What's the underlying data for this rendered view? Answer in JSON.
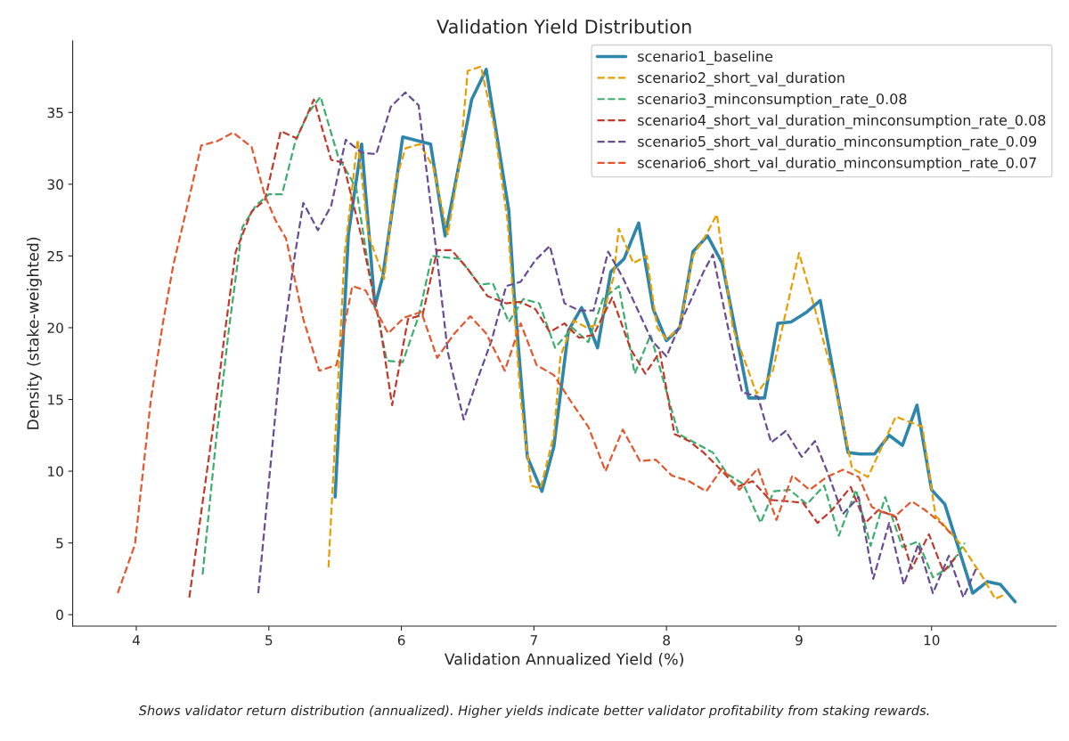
{
  "chart_data": {
    "type": "line",
    "title": "Validation Yield Distribution",
    "xlabel": "Validation Annualized Yield (%)",
    "ylabel": "Density (stake-weighted)",
    "annotations": [
      "Shows validator return distribution (annualized). Higher yields indicate better validator profitability from staking rewards."
    ],
    "xlim": [
      3.52,
      10.94
    ],
    "ylim": [
      -0.8,
      40
    ],
    "xticks": [
      4,
      5,
      6,
      7,
      8,
      9,
      10
    ],
    "yticks": [
      0,
      5,
      10,
      15,
      20,
      25,
      30,
      35
    ],
    "grid": false,
    "legend": "top right",
    "series": [
      {
        "name": "scenario1_baseline",
        "color": "#2e86ab",
        "line_style": "solid",
        "x": [
          5.5,
          5.6,
          5.7,
          5.8,
          5.86,
          6.01,
          6.22,
          6.33,
          6.53,
          6.64,
          6.81,
          6.85,
          6.95,
          7.06,
          7.15,
          7.26,
          7.36,
          7.48,
          7.58,
          7.68,
          7.79,
          7.9,
          8.0,
          8.1,
          8.2,
          8.31,
          8.42,
          8.62,
          8.74,
          8.84,
          8.94,
          9.06,
          9.16,
          9.37,
          9.46,
          9.57,
          9.68,
          9.78,
          9.89,
          10.0,
          10.1,
          10.31,
          10.42,
          10.52,
          10.63
        ],
        "values": [
          8.2,
          26.5,
          32.8,
          21.5,
          23.6,
          33.3,
          32.8,
          26.4,
          35.9,
          38.0,
          28.2,
          22.4,
          11.0,
          8.6,
          11.7,
          19.8,
          21.4,
          18.6,
          23.9,
          24.8,
          27.3,
          21.3,
          19.1,
          20.0,
          25.3,
          26.4,
          24.5,
          15.1,
          15.1,
          20.3,
          20.4,
          21.1,
          21.9,
          11.3,
          11.2,
          11.2,
          12.5,
          11.8,
          14.6,
          8.7,
          7.7,
          1.5,
          2.3,
          2.1,
          0.9
        ]
      },
      {
        "name": "scenario2_short_val_duration",
        "color": "#e69f00",
        "line_style": "dashed",
        "x": [
          5.45,
          5.51,
          5.57,
          5.67,
          5.75,
          5.87,
          5.95,
          6.03,
          6.14,
          6.24,
          6.35,
          6.44,
          6.5,
          6.6,
          6.7,
          6.8,
          6.9,
          6.98,
          7.05,
          7.15,
          7.2,
          7.3,
          7.4,
          7.5,
          7.6,
          7.64,
          7.75,
          7.85,
          7.93,
          8.0,
          8.1,
          8.2,
          8.3,
          8.38,
          8.5,
          8.68,
          8.8,
          9.0,
          9.12,
          9.27,
          9.4,
          9.52,
          9.73,
          9.93,
          10.03,
          10.23,
          10.38,
          10.48,
          10.55
        ],
        "values": [
          3.3,
          14,
          25,
          33.1,
          26.5,
          23.4,
          30,
          32.5,
          32.8,
          31.2,
          26.5,
          31.5,
          37.9,
          38.2,
          34,
          27.5,
          15,
          9,
          8.8,
          12.5,
          18,
          20.5,
          20.0,
          20.3,
          23.5,
          26.9,
          24.5,
          25,
          20,
          19.2,
          20,
          25,
          26.5,
          27.9,
          20,
          15.4,
          16.9,
          25.2,
          21.3,
          16.1,
          10.2,
          9.6,
          13.8,
          13.1,
          6.9,
          4.8,
          2.7,
          1.1,
          1.4
        ]
      },
      {
        "name": "scenario3_minconsumption_rate_0.08",
        "color": "#3cae6e",
        "line_style": "dashed",
        "x": [
          4.5,
          4.6,
          4.7,
          4.8,
          4.9,
          5.0,
          5.1,
          5.2,
          5.3,
          5.39,
          5.52,
          5.66,
          5.76,
          5.89,
          6.01,
          6.13,
          6.23,
          6.44,
          6.59,
          6.69,
          6.81,
          6.92,
          7.04,
          7.16,
          7.29,
          7.41,
          7.52,
          7.64,
          7.76,
          7.88,
          8.09,
          8.25,
          8.35,
          8.46,
          8.58,
          8.71,
          8.81,
          8.93,
          9.06,
          9.19,
          9.3,
          9.43,
          9.54,
          9.65,
          9.78,
          9.9,
          10.01,
          10.13,
          10.25
        ],
        "values": [
          2.8,
          12,
          20,
          27,
          28.5,
          29.3,
          29.3,
          33,
          35,
          36.1,
          32.0,
          29.7,
          23.7,
          17.7,
          17.6,
          20.8,
          25.0,
          24.8,
          23.0,
          23.1,
          20.4,
          22.0,
          21.7,
          18.6,
          20.0,
          19.0,
          22.0,
          22.9,
          16.8,
          19.5,
          12.6,
          11.8,
          11.3,
          9.8,
          9.1,
          6.4,
          8.6,
          8.7,
          7.7,
          9.0,
          5.5,
          8.7,
          4.8,
          8.2,
          4.7,
          5.1,
          2.6,
          3.3,
          5.0
        ]
      },
      {
        "name": "scenario4_short_val_duration_minconsumption_rate_0.08",
        "color": "#c0392b",
        "line_style": "dashed",
        "x": [
          4.4,
          4.58,
          4.67,
          4.75,
          4.87,
          4.97,
          5.09,
          5.21,
          5.34,
          5.47,
          5.56,
          5.7,
          5.84,
          5.93,
          6.05,
          6.16,
          6.27,
          6.38,
          6.5,
          6.65,
          6.79,
          6.9,
          7.01,
          7.12,
          7.23,
          7.34,
          7.45,
          7.59,
          7.73,
          7.84,
          7.95,
          8.06,
          8.17,
          8.28,
          8.42,
          8.53,
          8.65,
          8.78,
          8.92,
          9.03,
          9.14,
          9.25,
          9.39,
          9.5,
          9.6,
          9.73,
          9.85,
          9.98,
          10.09,
          10.2
        ],
        "values": [
          1.2,
          13.1,
          19.8,
          25.3,
          28.1,
          28.9,
          33.7,
          33.2,
          35.9,
          31.7,
          31.5,
          26.3,
          20.1,
          14.6,
          20.6,
          20.9,
          25.4,
          25.4,
          24.1,
          22.2,
          21.7,
          21.8,
          21.3,
          19.7,
          20.3,
          19.3,
          19.5,
          22.1,
          18.5,
          16.8,
          18.3,
          12.6,
          12.1,
          11.3,
          10.0,
          8.9,
          9.3,
          8.0,
          7.9,
          7.8,
          6.4,
          7.3,
          8.9,
          6.4,
          7.3,
          6.8,
          3.2,
          5.6,
          3.0,
          4.2
        ]
      },
      {
        "name": "scenario5_short_val_duratio_minconsumption_rate_0.09",
        "color": "#6a4c93",
        "line_style": "dashed",
        "x": [
          4.92,
          5.09,
          5.19,
          5.26,
          5.37,
          5.47,
          5.58,
          5.7,
          5.81,
          5.92,
          6.03,
          6.13,
          6.26,
          6.35,
          6.47,
          6.57,
          6.68,
          6.79,
          6.9,
          7.01,
          7.12,
          7.23,
          7.34,
          7.45,
          7.56,
          7.67,
          7.78,
          7.89,
          8.0,
          8.11,
          8.28,
          8.35,
          8.46,
          8.57,
          8.69,
          8.79,
          8.9,
          9.02,
          9.12,
          9.22,
          9.33,
          9.45,
          9.56,
          9.68,
          9.79,
          9.9,
          10.01,
          10.13,
          10.24,
          10.34
        ],
        "values": [
          1.5,
          17.9,
          24.7,
          28.7,
          26.8,
          28.5,
          33.1,
          32.2,
          32.1,
          35.4,
          36.4,
          35.5,
          25.6,
          18.3,
          13.6,
          16.3,
          19.1,
          22.9,
          23.2,
          24.7,
          25.7,
          21.7,
          21.2,
          21.2,
          25.3,
          23.5,
          21.3,
          19.1,
          18.0,
          20.4,
          23.9,
          25.1,
          20.2,
          15.5,
          15.2,
          12.0,
          12.8,
          11.0,
          12.1,
          9.8,
          7.0,
          8.2,
          2.5,
          6.4,
          2.1,
          4.9,
          1.5,
          4.1,
          1.2,
          3.3
        ]
      },
      {
        "name": "scenario6_short_val_duratio_minconsumption_rate_0.07",
        "color": "#e4572e",
        "line_style": "dashed",
        "x": [
          3.86,
          3.99,
          4.11,
          4.2,
          4.28,
          4.38,
          4.49,
          4.61,
          4.73,
          4.87,
          4.97,
          5.05,
          5.13,
          5.26,
          5.38,
          5.51,
          5.63,
          5.73,
          5.9,
          6.02,
          6.15,
          6.27,
          6.4,
          6.52,
          6.64,
          6.78,
          6.9,
          7.02,
          7.15,
          7.29,
          7.41,
          7.54,
          7.67,
          7.8,
          7.92,
          8.04,
          8.17,
          8.3,
          8.42,
          8.55,
          8.69,
          8.83,
          8.95,
          9.08,
          9.21,
          9.33,
          9.45,
          9.55,
          9.64,
          9.73,
          9.85,
          9.95,
          10.07,
          10.16
        ],
        "values": [
          1.5,
          4.9,
          15.0,
          20.3,
          24.4,
          28.3,
          32.7,
          33.0,
          33.6,
          32.6,
          29.2,
          27.5,
          26.2,
          20.6,
          17.0,
          17.4,
          22.9,
          22.6,
          19.6,
          20.7,
          21.1,
          17.9,
          19.6,
          20.8,
          19.6,
          17.0,
          20.3,
          17.4,
          16.7,
          14.7,
          13.1,
          10.0,
          12.9,
          10.7,
          10.8,
          9.7,
          9.3,
          8.6,
          10.2,
          8.7,
          10.2,
          6.6,
          9.7,
          8.7,
          9.6,
          10.1,
          9.6,
          7.5,
          7.1,
          6.9,
          7.9,
          7.3,
          6.4,
          5.5
        ]
      }
    ]
  }
}
